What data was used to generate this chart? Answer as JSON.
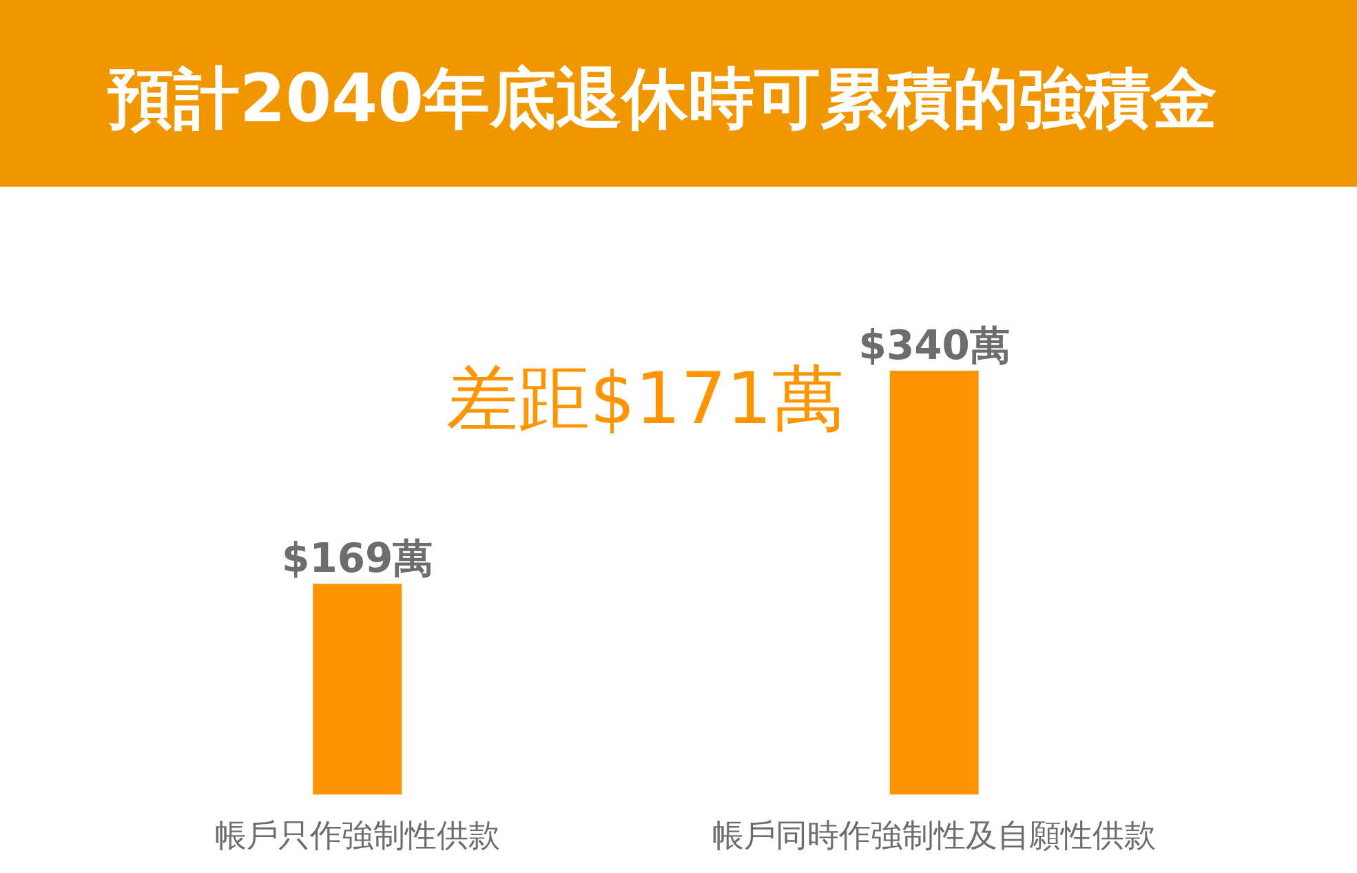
{
  "chart_data": {
    "type": "bar",
    "title": "預計2040年底退休時可累積的強積金",
    "categories": [
      "帳戶只作強制性供款",
      "帳戶同時作強制性及自願性供款"
    ],
    "values": [
      169,
      340
    ],
    "color": "#ff9500",
    "value_labels": [
      "$169萬",
      "$340萬"
    ],
    "annotations": [
      "差距$171萬"
    ]
  }
}
